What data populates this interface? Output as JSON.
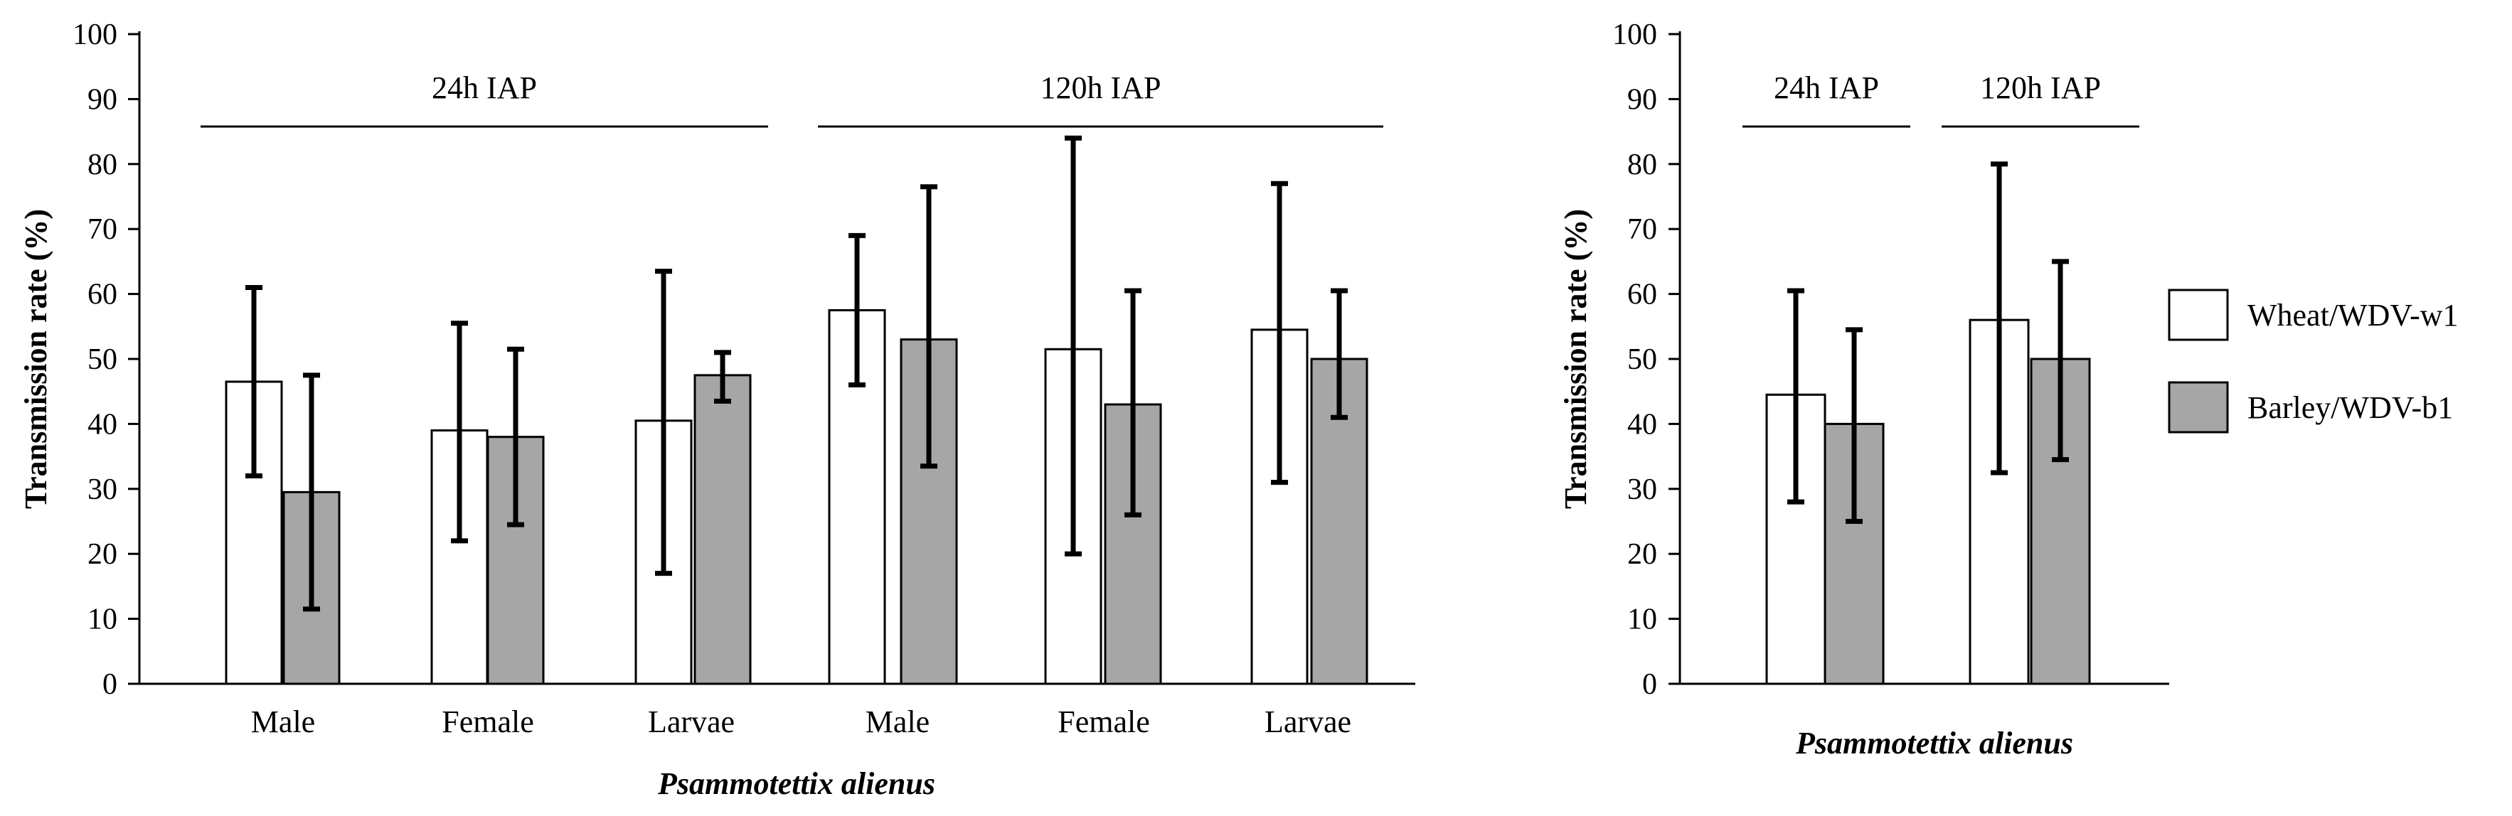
{
  "legend": [
    {
      "name": "Wheat/WDV-w1",
      "color": "#ffffff"
    },
    {
      "name": "Barley/WDV-b1",
      "color": "#a6a6a6"
    }
  ],
  "chart_data": [
    {
      "type": "bar",
      "ylabel": "Transmission rate (%)",
      "xlabel": "Psammotettix alienus",
      "ylim": [
        0,
        100
      ],
      "yticks": [
        0,
        10,
        20,
        30,
        40,
        50,
        60,
        70,
        80,
        90,
        100
      ],
      "groups": [
        {
          "label": "24h IAP",
          "categories": [
            0,
            1,
            2
          ]
        },
        {
          "label": "120h IAP",
          "categories": [
            3,
            4,
            5
          ]
        }
      ],
      "categories": [
        "Male",
        "Female",
        "Larvae",
        "Male",
        "Female",
        "Larvae"
      ],
      "series": [
        {
          "name": "Wheat/WDV-w1",
          "values": [
            46.5,
            39,
            40.5,
            57.5,
            51.5,
            54.5
          ],
          "error_low": [
            32,
            22,
            17,
            46,
            20,
            31
          ],
          "error_high": [
            61,
            55.5,
            63.5,
            69,
            84,
            77
          ]
        },
        {
          "name": "Barley/WDV-b1",
          "values": [
            29.5,
            38,
            47.5,
            53,
            43,
            50
          ],
          "error_low": [
            11.5,
            24.5,
            43.5,
            33.5,
            26,
            41
          ],
          "error_high": [
            47.5,
            51.5,
            51,
            76.5,
            60.5,
            60.5
          ]
        }
      ]
    },
    {
      "type": "bar",
      "ylabel": "Transmission rate (%)",
      "xlabel": "Psammotettix alienus",
      "ylim": [
        0,
        100
      ],
      "yticks": [
        0,
        10,
        20,
        30,
        40,
        50,
        60,
        70,
        80,
        90,
        100
      ],
      "groups": [
        {
          "label": "24h IAP",
          "categories": [
            0
          ]
        },
        {
          "label": "120h IAP",
          "categories": [
            1
          ]
        }
      ],
      "categories": [
        "24h IAP",
        "120h IAP"
      ],
      "series": [
        {
          "name": "Wheat/WDV-w1",
          "values": [
            44.5,
            56
          ],
          "error_low": [
            28,
            32.5
          ],
          "error_high": [
            60.5,
            80
          ]
        },
        {
          "name": "Barley/WDV-b1",
          "values": [
            40,
            50
          ],
          "error_low": [
            25,
            34.5
          ],
          "error_high": [
            54.5,
            65
          ]
        }
      ]
    }
  ]
}
